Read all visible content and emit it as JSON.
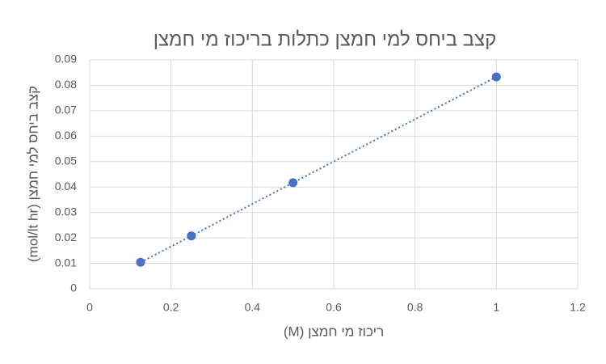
{
  "chart_data": {
    "type": "scatter",
    "title": "קצב ביחס למי חמצן כתלות בריכוז מי חמצן",
    "x_label": "ריכוז מי חמצן (M)",
    "y_label": "קצב ביחס למי חמצן (mol/lt hr)",
    "x": [
      0.125,
      0.25,
      0.5,
      1
    ],
    "values": [
      0.0104,
      0.0208,
      0.0417,
      0.0833
    ],
    "color": "#4472c4",
    "trendline": true,
    "xlim": [
      0,
      1.2
    ],
    "xticks": [
      0,
      0.2,
      0.4,
      0.6,
      0.8,
      1,
      1.2
    ],
    "ylim": [
      0,
      0.09
    ],
    "yticks": [
      0,
      0.01,
      0.02,
      0.03,
      0.04,
      0.05,
      0.06,
      0.07,
      0.08,
      0.09
    ],
    "grid": true
  }
}
